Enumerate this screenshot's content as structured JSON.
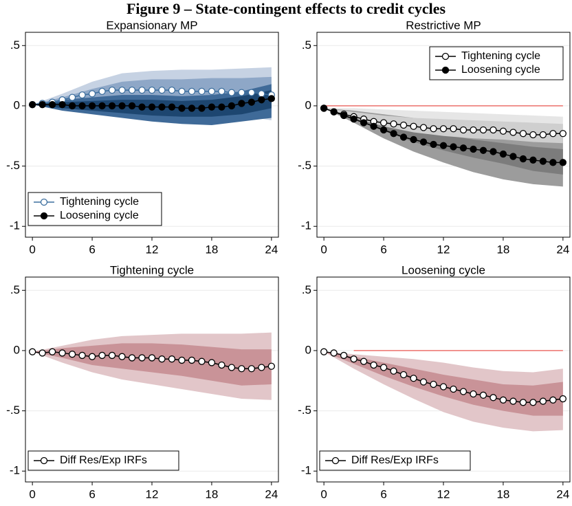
{
  "figure_title": "Figure 9 – State-contingent effects to credit cycles",
  "chart_data": [
    {
      "type": "line",
      "title": "Expansionary MP",
      "legend": "bottom-left",
      "grid": true,
      "x": [
        0,
        1,
        2,
        3,
        4,
        5,
        6,
        7,
        8,
        9,
        10,
        11,
        12,
        13,
        14,
        15,
        16,
        17,
        18,
        19,
        20,
        21,
        22,
        23,
        24
      ],
      "xlim": [
        -0.7,
        24.7
      ],
      "xticks": [
        0,
        6,
        12,
        18,
        24
      ],
      "ylim": [
        -1.09,
        0.61
      ],
      "yticks": [
        {
          "value": 0.5,
          "label": ".5"
        },
        0,
        {
          "value": -0.5,
          "label": "-.5"
        },
        -1
      ],
      "band_x": [
        0,
        3,
        6,
        9,
        12,
        15,
        18,
        21,
        24
      ],
      "bands": [
        {
          "color": "#c6d2e3",
          "upper": [
            0.01,
            0.1,
            0.2,
            0.27,
            0.29,
            0.3,
            0.3,
            0.31,
            0.32
          ],
          "lower": [
            0.01,
            0.0,
            -0.02,
            -0.04,
            -0.05,
            -0.06,
            -0.06,
            -0.08,
            -0.12
          ]
        },
        {
          "color": "#8ea7c7",
          "upper": [
            0.01,
            0.07,
            0.14,
            0.2,
            0.22,
            0.22,
            0.23,
            0.23,
            0.24
          ],
          "lower": [
            0.01,
            0.02,
            0.02,
            0.02,
            0.02,
            0.01,
            0.01,
            0.0,
            -0.04
          ]
        },
        {
          "color": "#3f6a98",
          "upper": [
            0.01,
            0.05,
            0.07,
            0.09,
            0.09,
            0.08,
            0.09,
            0.12,
            0.18
          ],
          "lower": [
            0.01,
            -0.04,
            -0.07,
            -0.1,
            -0.13,
            -0.15,
            -0.16,
            -0.13,
            -0.1
          ]
        },
        {
          "color": "#1d4670",
          "upper": [
            0.01,
            0.03,
            0.04,
            0.05,
            0.05,
            0.04,
            0.05,
            0.08,
            0.13
          ],
          "lower": [
            0.01,
            -0.02,
            -0.04,
            -0.06,
            -0.08,
            -0.09,
            -0.09,
            -0.07,
            -0.02
          ]
        }
      ],
      "series": [
        {
          "name": "Tightening cycle",
          "color": "#3b6e9e",
          "marker": "hollow",
          "values": [
            0.01,
            0.02,
            0.03,
            0.05,
            0.07,
            0.09,
            0.1,
            0.12,
            0.13,
            0.13,
            0.13,
            0.13,
            0.13,
            0.13,
            0.13,
            0.12,
            0.12,
            0.12,
            0.12,
            0.12,
            0.11,
            0.11,
            0.11,
            0.1,
            0.09
          ]
        },
        {
          "name": "Loosening cycle",
          "color": "#000000",
          "marker": "filled",
          "values": [
            0.01,
            0.01,
            0.01,
            0.01,
            0.0,
            0.0,
            0.0,
            0.0,
            0.0,
            0.0,
            0.0,
            -0.01,
            -0.01,
            -0.01,
            -0.01,
            -0.02,
            -0.02,
            -0.02,
            -0.01,
            -0.01,
            0.0,
            0.02,
            0.03,
            0.05,
            0.06
          ]
        }
      ]
    },
    {
      "type": "line",
      "title": "Restrictive MP",
      "legend": "top-right",
      "grid": true,
      "x": [
        0,
        1,
        2,
        3,
        4,
        5,
        6,
        7,
        8,
        9,
        10,
        11,
        12,
        13,
        14,
        15,
        16,
        17,
        18,
        19,
        20,
        21,
        22,
        23,
        24
      ],
      "xlim": [
        -0.7,
        24.7
      ],
      "xticks": [
        0,
        6,
        12,
        18,
        24
      ],
      "ylim": [
        -1.09,
        0.61
      ],
      "yticks": [
        {
          "value": 0.5,
          "label": ".5"
        },
        0,
        {
          "value": -0.5,
          "label": "-.5"
        },
        -1
      ],
      "hline": {
        "y": 0,
        "x": [
          0,
          24
        ],
        "color": "#e8423b"
      },
      "band_x": [
        0,
        3,
        6,
        9,
        12,
        15,
        18,
        21,
        24
      ],
      "bands": [
        {
          "color": "#e6e6e6",
          "upper": [
            -0.02,
            -0.02,
            -0.03,
            -0.04,
            -0.05,
            -0.06,
            -0.07,
            -0.08,
            -0.09
          ],
          "lower": [
            -0.02,
            -0.14,
            -0.24,
            -0.3,
            -0.33,
            -0.35,
            -0.37,
            -0.38,
            -0.39
          ]
        },
        {
          "color": "#9c9c9c",
          "upper": [
            -0.02,
            -0.04,
            -0.07,
            -0.1,
            -0.13,
            -0.16,
            -0.2,
            -0.24,
            -0.27
          ],
          "lower": [
            -0.02,
            -0.14,
            -0.27,
            -0.38,
            -0.47,
            -0.55,
            -0.61,
            -0.65,
            -0.67
          ]
        },
        {
          "color": "#7c7c7c",
          "upper": [
            -0.02,
            -0.07,
            -0.13,
            -0.19,
            -0.24,
            -0.28,
            -0.31,
            -0.34,
            -0.36
          ],
          "lower": [
            -0.02,
            -0.11,
            -0.21,
            -0.3,
            -0.37,
            -0.43,
            -0.48,
            -0.54,
            -0.57
          ]
        },
        {
          "color": "#cfcfcf",
          "upper": [
            -0.02,
            -0.05,
            -0.08,
            -0.1,
            -0.11,
            -0.12,
            -0.13,
            -0.14,
            -0.15
          ],
          "lower": [
            -0.02,
            -0.1,
            -0.17,
            -0.22,
            -0.25,
            -0.27,
            -0.28,
            -0.3,
            -0.31
          ]
        }
      ],
      "series": [
        {
          "name": "Tightening cycle",
          "color": "#000000",
          "marker": "hollow",
          "values": [
            -0.02,
            -0.05,
            -0.07,
            -0.09,
            -0.11,
            -0.13,
            -0.14,
            -0.15,
            -0.16,
            -0.17,
            -0.18,
            -0.19,
            -0.19,
            -0.19,
            -0.2,
            -0.2,
            -0.2,
            -0.2,
            -0.21,
            -0.22,
            -0.23,
            -0.24,
            -0.24,
            -0.23,
            -0.23
          ]
        },
        {
          "name": "Loosening cycle",
          "color": "#000000",
          "marker": "filled",
          "values": [
            -0.02,
            -0.05,
            -0.08,
            -0.11,
            -0.14,
            -0.17,
            -0.2,
            -0.23,
            -0.26,
            -0.28,
            -0.3,
            -0.32,
            -0.33,
            -0.34,
            -0.35,
            -0.36,
            -0.37,
            -0.38,
            -0.4,
            -0.42,
            -0.44,
            -0.45,
            -0.46,
            -0.47,
            -0.47
          ]
        }
      ]
    },
    {
      "type": "line",
      "title": "Tightening cycle",
      "legend": "bottom-left",
      "grid": true,
      "x": [
        0,
        1,
        2,
        3,
        4,
        5,
        6,
        7,
        8,
        9,
        10,
        11,
        12,
        13,
        14,
        15,
        16,
        17,
        18,
        19,
        20,
        21,
        22,
        23,
        24
      ],
      "xlim": [
        -0.7,
        24.7
      ],
      "xticks": [
        0,
        6,
        12,
        18,
        24
      ],
      "ylim": [
        -1.09,
        0.61
      ],
      "yticks": [
        {
          "value": 0.5,
          "label": ".5"
        },
        0,
        {
          "value": -0.5,
          "label": "-.5"
        },
        -1
      ],
      "band_x": [
        0,
        3,
        6,
        9,
        12,
        15,
        18,
        21,
        24
      ],
      "bands": [
        {
          "color": "#e2c6c9",
          "upper": [
            -0.01,
            0.04,
            0.09,
            0.12,
            0.13,
            0.14,
            0.14,
            0.14,
            0.15
          ],
          "lower": [
            -0.01,
            -0.1,
            -0.18,
            -0.24,
            -0.28,
            -0.32,
            -0.36,
            -0.4,
            -0.41
          ]
        },
        {
          "color": "#c99398",
          "upper": [
            -0.01,
            0.02,
            0.04,
            0.06,
            0.06,
            0.05,
            0.03,
            0.01,
            0.01
          ],
          "lower": [
            -0.01,
            -0.06,
            -0.12,
            -0.15,
            -0.18,
            -0.21,
            -0.25,
            -0.29,
            -0.28
          ]
        }
      ],
      "series": [
        {
          "name": "Diff Res/Exp IRFs",
          "color": "#000000",
          "marker": "hollow",
          "values": [
            -0.01,
            -0.02,
            -0.01,
            -0.02,
            -0.03,
            -0.04,
            -0.05,
            -0.04,
            -0.04,
            -0.05,
            -0.06,
            -0.06,
            -0.06,
            -0.07,
            -0.07,
            -0.08,
            -0.08,
            -0.09,
            -0.1,
            -0.12,
            -0.14,
            -0.15,
            -0.15,
            -0.14,
            -0.13
          ]
        }
      ]
    },
    {
      "type": "line",
      "title": "Loosening cycle",
      "legend": "bottom-left",
      "grid": true,
      "x": [
        0,
        1,
        2,
        3,
        4,
        5,
        6,
        7,
        8,
        9,
        10,
        11,
        12,
        13,
        14,
        15,
        16,
        17,
        18,
        19,
        20,
        21,
        22,
        23,
        24
      ],
      "xlim": [
        -0.7,
        24.7
      ],
      "xticks": [
        0,
        6,
        12,
        18,
        24
      ],
      "ylim": [
        -1.09,
        0.61
      ],
      "yticks": [
        {
          "value": 0.5,
          "label": ".5"
        },
        0,
        {
          "value": -0.5,
          "label": "-.5"
        },
        -1
      ],
      "hline": {
        "y": 0,
        "x": [
          3,
          24
        ],
        "color": "#e8423b"
      },
      "band_x": [
        0,
        3,
        6,
        9,
        12,
        15,
        18,
        21,
        24
      ],
      "bands": [
        {
          "color": "#e2c6c9",
          "upper": [
            -0.01,
            -0.03,
            -0.05,
            -0.07,
            -0.1,
            -0.14,
            -0.17,
            -0.18,
            -0.15
          ],
          "lower": [
            -0.01,
            -0.15,
            -0.28,
            -0.4,
            -0.51,
            -0.59,
            -0.64,
            -0.67,
            -0.66
          ]
        },
        {
          "color": "#c99398",
          "upper": [
            -0.01,
            -0.05,
            -0.1,
            -0.15,
            -0.2,
            -0.24,
            -0.28,
            -0.29,
            -0.26
          ],
          "lower": [
            -0.01,
            -0.11,
            -0.21,
            -0.3,
            -0.38,
            -0.45,
            -0.5,
            -0.54,
            -0.54
          ]
        }
      ],
      "series": [
        {
          "name": "Diff Res/Exp IRFs",
          "color": "#000000",
          "marker": "hollow",
          "values": [
            -0.01,
            -0.02,
            -0.04,
            -0.07,
            -0.09,
            -0.12,
            -0.14,
            -0.17,
            -0.2,
            -0.23,
            -0.26,
            -0.28,
            -0.3,
            -0.32,
            -0.34,
            -0.36,
            -0.37,
            -0.39,
            -0.41,
            -0.42,
            -0.43,
            -0.43,
            -0.42,
            -0.41,
            -0.4
          ]
        }
      ]
    }
  ]
}
